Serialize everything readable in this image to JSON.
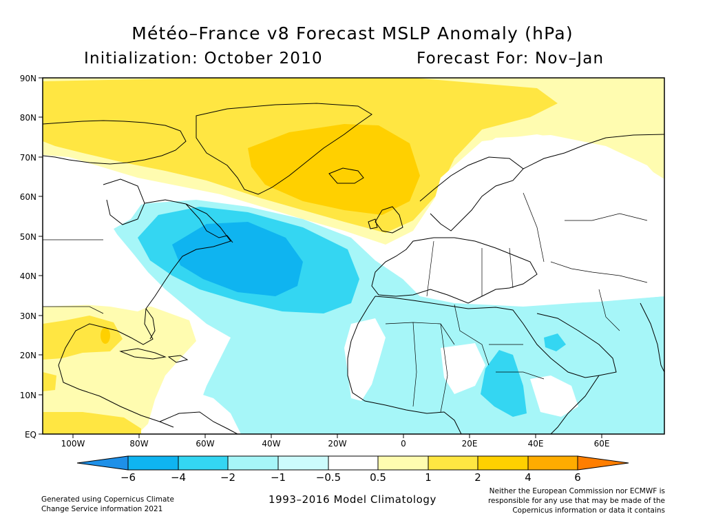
{
  "title": "Météo–France v8 Forecast MSLP Anomaly (hPa)",
  "initialization": "Initialization: October 2010",
  "forecast_for": "Forecast For: Nov–Jan",
  "map": {
    "lat_labels": [
      "90N",
      "80N",
      "70N",
      "60N",
      "50N",
      "40N",
      "30N",
      "20N",
      "10N",
      "EQ"
    ],
    "lon_labels": [
      "100W",
      "80W",
      "60W",
      "40W",
      "20W",
      "0",
      "20E",
      "40E",
      "60E"
    ],
    "lon_range": [
      -110,
      78
    ],
    "lat_range": [
      0,
      90
    ]
  },
  "colorbar": {
    "labels": [
      "−6",
      "−4",
      "−2",
      "−1",
      "−0.5",
      "0.5",
      "1",
      "2",
      "4",
      "6"
    ],
    "colors": [
      "#1e90e8",
      "#0fb4f0",
      "#34d6f2",
      "#a6f6f8",
      "#ffffff",
      "#fffcb0",
      "#ffe642",
      "#ffd000",
      "#ffac00",
      "#ff7e00"
    ]
  },
  "footer": {
    "left_line1": "Generated using Copernicus Climate",
    "left_line2": "Change Service information 2021",
    "center": "1993–2016 Model Climatology",
    "right_line1": "Neither the European Commission nor ECMWF is",
    "right_line2": "responsible for any use that may be made of the",
    "right_line3": "Copernicus information or data it contains"
  }
}
